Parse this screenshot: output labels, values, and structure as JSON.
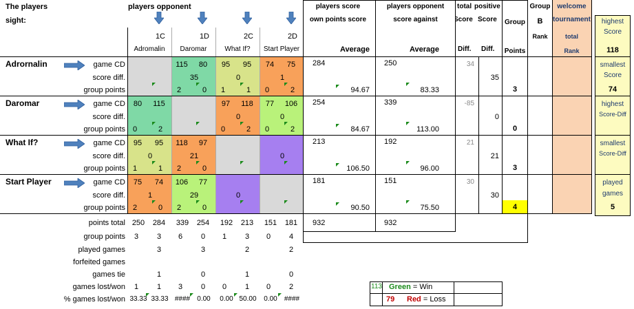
{
  "header": {
    "sight_line1": "The players",
    "sight_line2": "sight:",
    "opponent_title": "players opponent",
    "players_score": "players score",
    "own_points_score": "own points score",
    "players_opponent": "players opponent",
    "score_against": "score against",
    "average": "Average",
    "total_label": "total",
    "positive_label": "positive",
    "score_label": "Score",
    "diff_label": "Diff.",
    "group_label": "Group",
    "points_label": "Points",
    "group_b1": "Group",
    "group_b2": "B",
    "rank_label": "Rank",
    "welcome": "welcome",
    "tournament": "tournament",
    "total2": "total",
    "rank2": "Rank"
  },
  "columns": [
    {
      "code": "1C",
      "name": "Adromalin"
    },
    {
      "code": "1D",
      "name": "Daromar"
    },
    {
      "code": "2C",
      "name": "What If?"
    },
    {
      "code": "2D",
      "name": "Start Player"
    }
  ],
  "row_labels": {
    "game": "game CD",
    "diff": "score diff.",
    "points": "group points"
  },
  "players": [
    {
      "name": "Adrornalin",
      "cells": [
        {
          "bg": "#d9d9d9",
          "a": "",
          "b": "",
          "d": "",
          "p1": "",
          "p2": ""
        },
        {
          "bg": "#7fd9a6",
          "a": "115",
          "b": "80",
          "d": "35",
          "p1": "2",
          "p2": "0"
        },
        {
          "bg": "#d8e38a",
          "a": "95",
          "b": "95",
          "d": "0",
          "p1": "1",
          "p2": "1"
        },
        {
          "bg": "#f8a15a",
          "a": "74",
          "b": "75",
          "d": "1",
          "p1": "0",
          "p2": "2"
        }
      ],
      "own": "284",
      "own_avg": "94.67",
      "against": "250",
      "against_avg": "83.33",
      "score_diff": "34",
      "pos_diff": "35",
      "group_points": "3"
    },
    {
      "name": "Daromar",
      "cells": [
        {
          "bg": "#7fd9a6",
          "a": "80",
          "b": "115",
          "d": "",
          "p1": "0",
          "p2": "2"
        },
        {
          "bg": "#d9d9d9",
          "a": "",
          "b": "",
          "d": "",
          "p1": "",
          "p2": ""
        },
        {
          "bg": "#f8a15a",
          "a": "97",
          "b": "118",
          "d": "0",
          "p1": "0",
          "p2": "2"
        },
        {
          "bg": "#b9f27a",
          "a": "77",
          "b": "106",
          "d": "0",
          "p1": "0",
          "p2": "2"
        }
      ],
      "own": "254",
      "own_avg": "84.67",
      "against": "339",
      "against_avg": "113.00",
      "score_diff": "-85",
      "pos_diff": "0",
      "group_points": "0"
    },
    {
      "name": "What If?",
      "cells": [
        {
          "bg": "#d8e38a",
          "a": "95",
          "b": "95",
          "d": "0",
          "p1": "1",
          "p2": "1"
        },
        {
          "bg": "#f8a15a",
          "a": "118",
          "b": "97",
          "d": "21",
          "p1": "2",
          "p2": "0"
        },
        {
          "bg": "#d9d9d9",
          "a": "",
          "b": "",
          "d": "",
          "p1": "",
          "p2": ""
        },
        {
          "bg": "#a67ff0",
          "a": "",
          "b": "",
          "d": "0",
          "p1": "",
          "p2": ""
        }
      ],
      "own": "213",
      "own_avg": "106.50",
      "against": "192",
      "against_avg": "96.00",
      "score_diff": "21",
      "pos_diff": "21",
      "group_points": "3"
    },
    {
      "name": "Start Player",
      "cells": [
        {
          "bg": "#f8a15a",
          "a": "75",
          "b": "74",
          "d": "1",
          "p1": "2",
          "p2": "0"
        },
        {
          "bg": "#b9f27a",
          "a": "106",
          "b": "77",
          "d": "29",
          "p1": "2",
          "p2": "0"
        },
        {
          "bg": "#a67ff0",
          "a": "",
          "b": "",
          "d": "0",
          "p1": "",
          "p2": ""
        },
        {
          "bg": "#d9d9d9",
          "a": "",
          "b": "",
          "d": "",
          "p1": "",
          "p2": ""
        }
      ],
      "own": "181",
      "own_avg": "90.50",
      "against": "151",
      "against_avg": "75.50",
      "score_diff": "30",
      "pos_diff": "30",
      "group_points": "4"
    }
  ],
  "summary": {
    "labels": [
      "points total",
      "group points",
      "played games",
      "forfeited games",
      "games tie",
      "games lost/won",
      "% games lost/won"
    ],
    "cols": [
      {
        "pt": [
          "250",
          "284"
        ],
        "gp": [
          "3",
          "3"
        ],
        "played": "3",
        "forf": "",
        "tie": "1",
        "lw": [
          "1",
          "1"
        ],
        "pct": [
          "33.33",
          "33.33"
        ]
      },
      {
        "pt": [
          "339",
          "254"
        ],
        "gp": [
          "6",
          "0"
        ],
        "played": "3",
        "forf": "",
        "tie": "0",
        "lw": [
          "3",
          "0"
        ],
        "pct": [
          "####",
          "0.00"
        ]
      },
      {
        "pt": [
          "192",
          "213"
        ],
        "gp": [
          "1",
          "3"
        ],
        "played": "2",
        "forf": "",
        "tie": "1",
        "lw": [
          "0",
          "1"
        ],
        "pct": [
          "0.00",
          "50.00"
        ]
      },
      {
        "pt": [
          "151",
          "181"
        ],
        "gp": [
          "0",
          "4"
        ],
        "played": "2",
        "forf": "",
        "tie": "0",
        "lw": [
          "0",
          "2"
        ],
        "pct": [
          "0.00",
          "####"
        ]
      }
    ],
    "own_total": "932",
    "against_total": "932"
  },
  "side": {
    "highest_score_l1": "highest",
    "highest_score_l2": "Score",
    "highest_score_v": "118",
    "smallest_score_l1": "smallest",
    "smallest_score_l2": "Score",
    "smallest_score_v": "74",
    "highest_diff_l1": "highest",
    "highest_diff_l2": "Score-Diff",
    "smallest_diff_l1": "smallest",
    "smallest_diff_l2": "Score-Diff",
    "played_l1": "played",
    "played_l2": "games",
    "played_v": "5"
  },
  "legend": {
    "win_num": "113",
    "win_word": "Green",
    "win_text": " = Win",
    "loss_num": "79",
    "loss_word": "Red",
    "loss_text": " = Loss",
    "green": "#1a8a1a",
    "red": "#c00000"
  }
}
